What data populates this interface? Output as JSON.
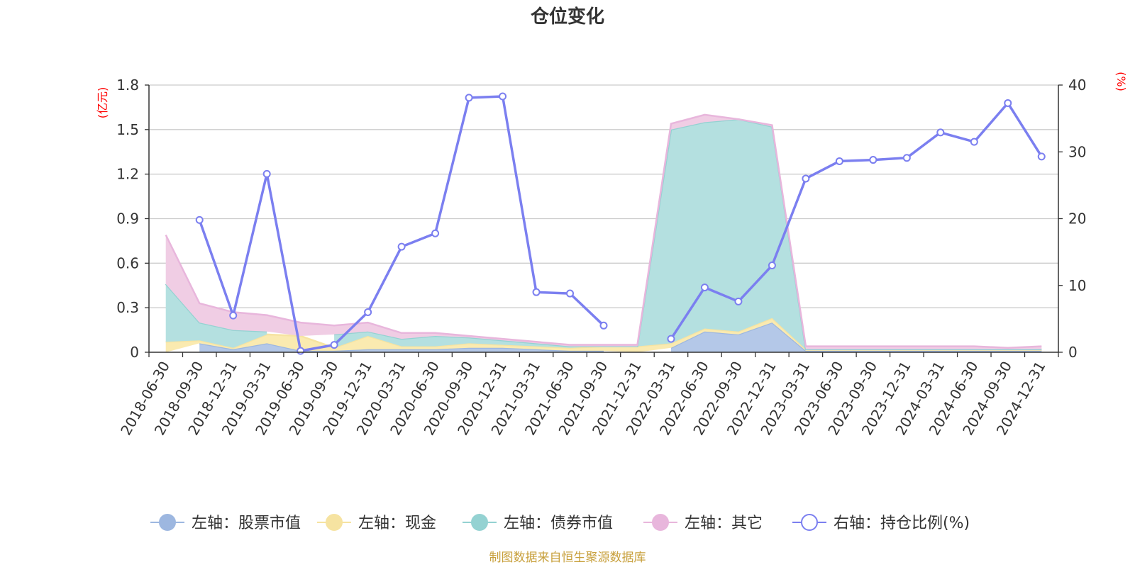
{
  "chart_data": {
    "type": "area",
    "title": "仓位变化",
    "left_unit": "(亿元)",
    "right_unit": "(%)",
    "left_axis": {
      "min": 0,
      "max": 1.8,
      "ticks": [
        "0",
        "0.3",
        "0.6",
        "0.9",
        "1.2",
        "1.5",
        "1.8"
      ]
    },
    "right_axis": {
      "min": 0,
      "max": 40,
      "ticks": [
        "0",
        "10",
        "20",
        "30",
        "40"
      ]
    },
    "grid": true,
    "legend_position": "bottom-center",
    "categories": [
      "2018-06-30",
      "2018-09-30",
      "2018-12-31",
      "2019-03-31",
      "2019-06-30",
      "2019-09-30",
      "2019-12-31",
      "2020-03-31",
      "2020-06-30",
      "2020-09-30",
      "2020-12-31",
      "2021-03-31",
      "2021-06-30",
      "2021-09-30",
      "2021-12-31",
      "2022-03-31",
      "2022-06-30",
      "2022-09-30",
      "2022-12-31",
      "2023-03-31",
      "2023-06-30",
      "2023-09-30",
      "2023-12-31",
      "2024-03-31",
      "2024-06-30",
      "2024-09-30",
      "2024-12-31"
    ],
    "stack_series": [
      {
        "name": "左轴：股票市值",
        "axis": "left",
        "fill": "#b4c8e8",
        "stroke": "#9db7e0",
        "values": [
          null,
          0.06,
          0.02,
          0.06,
          0.01,
          0.01,
          0.02,
          0.02,
          0.02,
          0.03,
          0.03,
          0.02,
          0.01,
          0.01,
          null,
          0.03,
          0.14,
          0.12,
          0.2,
          0.01,
          0.01,
          0.01,
          0.01,
          0.01,
          0.01,
          0.01,
          0.01
        ]
      },
      {
        "name": "左轴：现金",
        "axis": "left",
        "fill": "#faeab0",
        "stroke": "#f6e3a1",
        "values": [
          0.07,
          0.02,
          0.01,
          0.06,
          0.1,
          0.02,
          0.09,
          0.02,
          0.02,
          0.03,
          0.02,
          0.02,
          0.02,
          0.03,
          0.04,
          0.03,
          0.02,
          0.02,
          0.03,
          0.01,
          0.01,
          0.01,
          0.01,
          0.01,
          0.01,
          0.01,
          0.01
        ]
      },
      {
        "name": "左轴：债券市值",
        "axis": "left",
        "fill": "#b4e0e0",
        "stroke": "#94d2d2",
        "values": [
          0.39,
          0.12,
          0.12,
          0.02,
          null,
          0.09,
          0.03,
          0.05,
          0.07,
          0.04,
          0.03,
          0.02,
          0.01,
          0,
          0,
          1.44,
          1.39,
          1.43,
          1.29,
          0,
          0,
          0,
          0,
          0,
          0,
          0,
          0
        ]
      },
      {
        "name": "左轴：其它",
        "axis": "left",
        "fill": "#f0cde4",
        "stroke": "#e8b6dc",
        "values": [
          0.33,
          0.13,
          0.12,
          0.11,
          0.09,
          0.06,
          0.06,
          0.04,
          0.02,
          0.01,
          0.01,
          0.01,
          0.01,
          0.01,
          0.01,
          0.04,
          0.05,
          0,
          0.01,
          0.02,
          0.02,
          0.02,
          0.02,
          0.02,
          0.02,
          0.01,
          0.02
        ]
      }
    ],
    "line_series": {
      "name": "右轴：持仓比例(%)",
      "axis": "right",
      "color": "#7b7ff0",
      "values": [
        null,
        19.8,
        5.5,
        26.7,
        0.2,
        1.1,
        6.0,
        15.8,
        17.8,
        38.1,
        38.3,
        9.0,
        8.8,
        4.0,
        null,
        2.0,
        9.7,
        7.6,
        13.0,
        26.0,
        28.6,
        28.8,
        29.1,
        32.9,
        31.5,
        37.3,
        29.3
      ]
    },
    "source": "制图数据来自恒生聚源数据库"
  }
}
